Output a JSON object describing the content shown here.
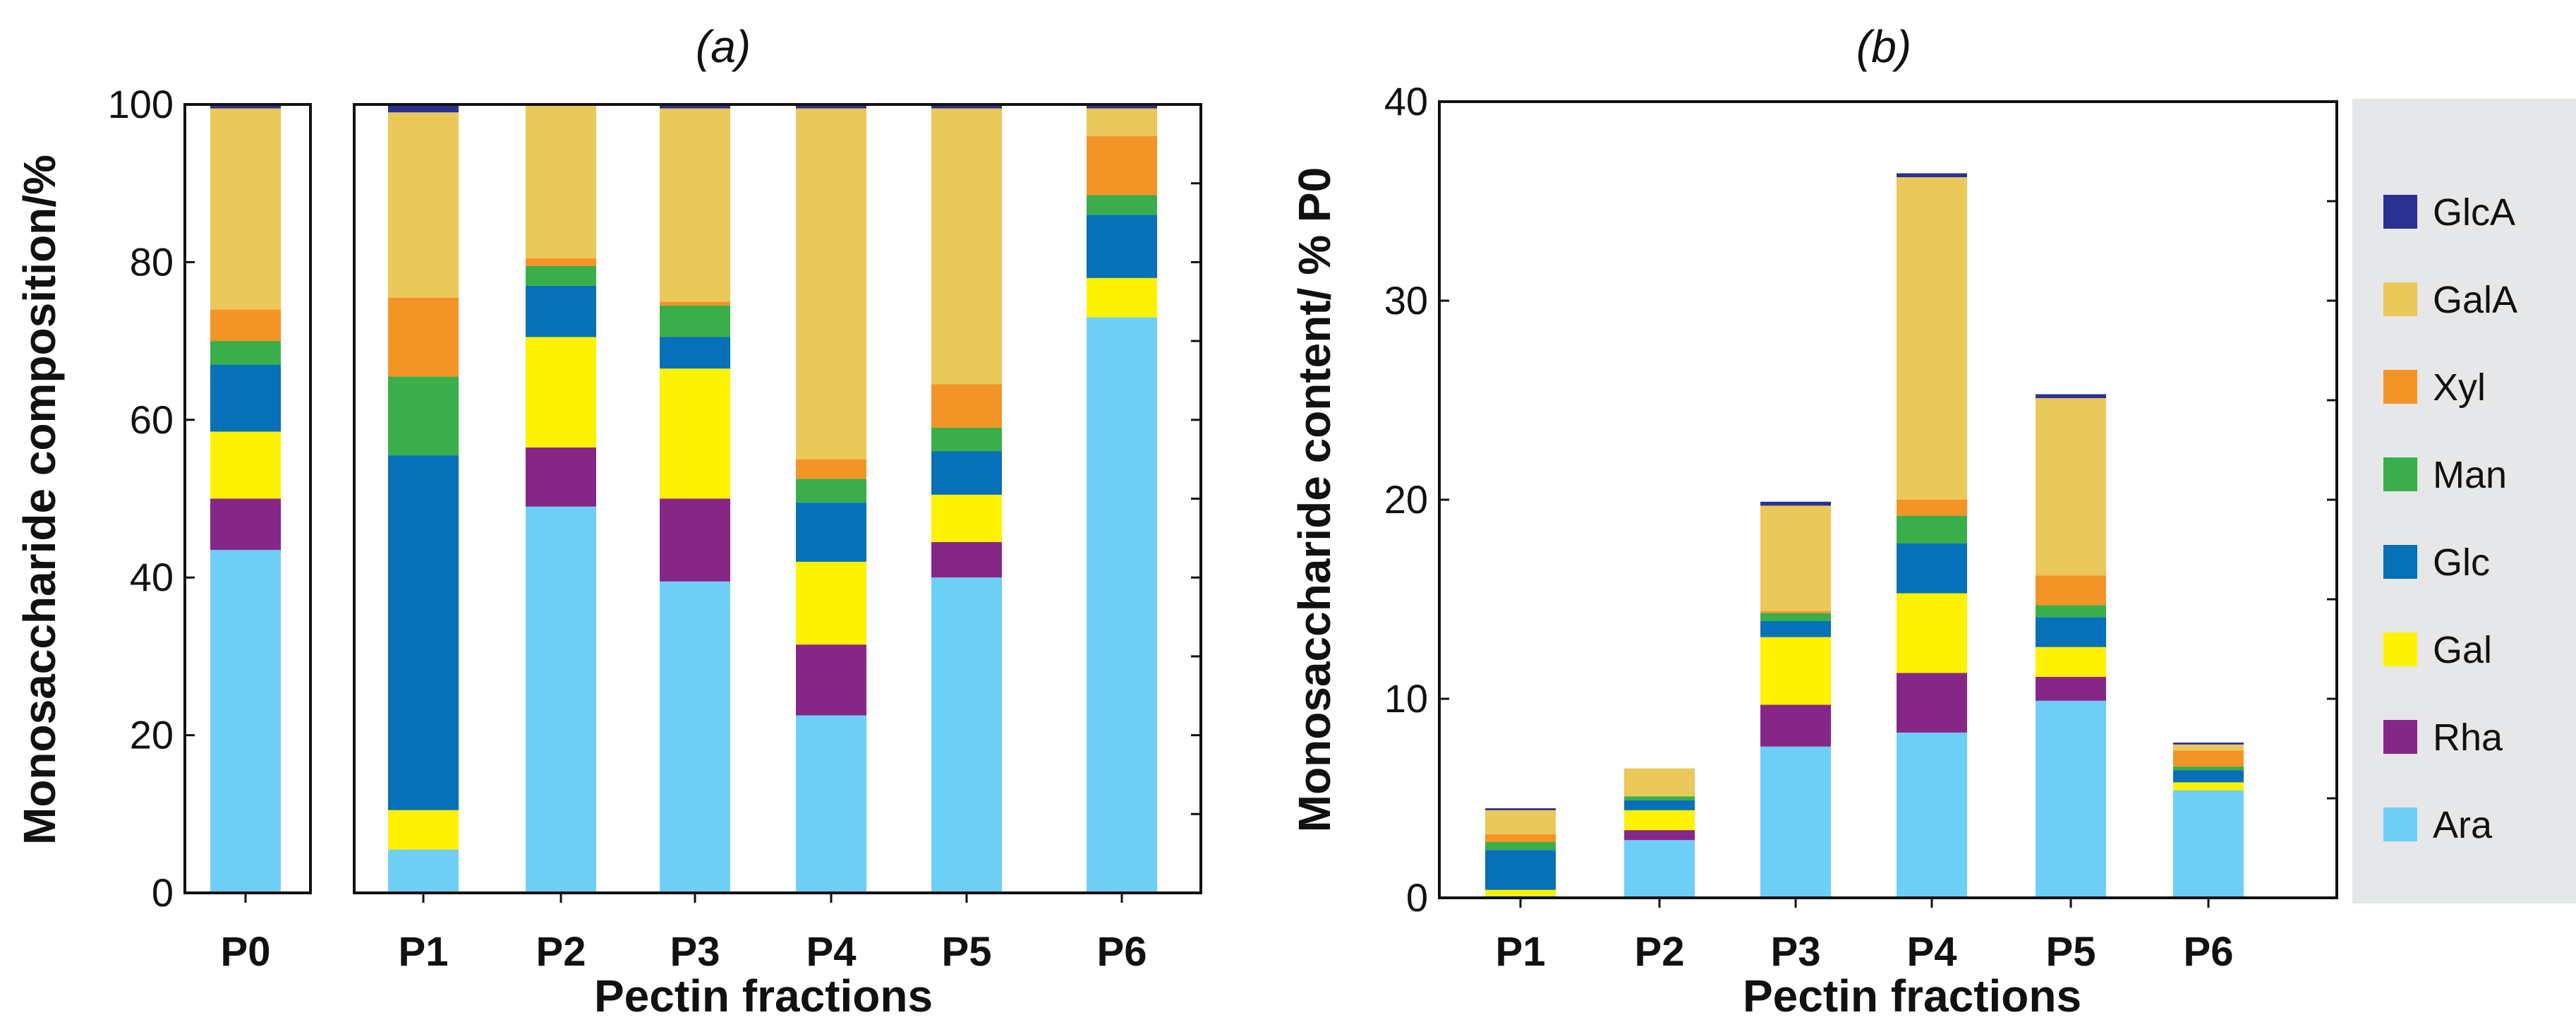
{
  "chart_data": [
    {
      "type": "bar",
      "stacked": true,
      "panel_label": "(a)",
      "ylabel": "Monosaccharide composition/%",
      "xlabel": "Pectin fractions",
      "ylim": [
        0,
        100
      ],
      "yticks": [
        "0",
        "20",
        "40",
        "60",
        "80",
        "100"
      ],
      "categories": [
        "P0",
        "P1",
        "P2",
        "P3",
        "P4",
        "P5",
        "P6"
      ],
      "series": [
        {
          "name": "Ara",
          "values": [
            43.5,
            5.5,
            49.0,
            39.5,
            22.5,
            40.0,
            73.0
          ]
        },
        {
          "name": "Rha",
          "values": [
            6.5,
            0.0,
            7.5,
            10.5,
            9.0,
            4.5,
            0.0
          ]
        },
        {
          "name": "Gal",
          "values": [
            8.5,
            5.0,
            14.0,
            16.5,
            10.5,
            6.0,
            5.0
          ]
        },
        {
          "name": "Glc",
          "values": [
            8.5,
            45.0,
            6.5,
            4.0,
            7.5,
            5.5,
            8.0
          ]
        },
        {
          "name": "Man",
          "values": [
            3.0,
            10.0,
            2.5,
            4.0,
            3.0,
            3.0,
            2.5
          ]
        },
        {
          "name": "Xyl",
          "values": [
            4.0,
            10.0,
            1.0,
            0.5,
            2.5,
            5.5,
            7.5
          ]
        },
        {
          "name": "GalA",
          "values": [
            25.5,
            23.5,
            19.5,
            24.5,
            44.5,
            35.0,
            3.5
          ]
        },
        {
          "name": "GlcA",
          "values": [
            0.5,
            1.0,
            0.0,
            0.5,
            0.5,
            0.5,
            0.5
          ]
        }
      ]
    },
    {
      "type": "bar",
      "stacked": true,
      "panel_label": "(b)",
      "ylabel": "Monosaccharide content/ % P0",
      "xlabel": "Pectin fractions",
      "ylim": [
        0,
        40
      ],
      "yticks": [
        "0",
        "10",
        "20",
        "30",
        "40"
      ],
      "categories": [
        "P1",
        "P2",
        "P3",
        "P4",
        "P5",
        "P6"
      ],
      "series": [
        {
          "name": "Ara",
          "values": [
            0.1,
            2.9,
            7.6,
            8.3,
            9.9,
            5.4
          ]
        },
        {
          "name": "Rha",
          "values": [
            0.0,
            0.5,
            2.1,
            3.0,
            1.2,
            0.0
          ]
        },
        {
          "name": "Gal",
          "values": [
            0.3,
            1.0,
            3.4,
            4.0,
            1.5,
            0.4
          ]
        },
        {
          "name": "Glc",
          "values": [
            2.0,
            0.5,
            0.8,
            2.5,
            1.5,
            0.6
          ]
        },
        {
          "name": "Man",
          "values": [
            0.4,
            0.2,
            0.4,
            1.4,
            0.6,
            0.2
          ]
        },
        {
          "name": "Xyl",
          "values": [
            0.4,
            0.0,
            0.1,
            0.8,
            1.5,
            0.8
          ]
        },
        {
          "name": "GalA",
          "values": [
            1.2,
            1.4,
            5.3,
            16.2,
            8.9,
            0.3
          ]
        },
        {
          "name": "GlcA",
          "values": [
            0.1,
            0.0,
            0.2,
            0.2,
            0.2,
            0.1
          ]
        }
      ]
    }
  ],
  "legend": {
    "items": [
      "GlcA",
      "GalA",
      "Xyl",
      "Man",
      "Glc",
      "Gal",
      "Rha",
      "Ara"
    ],
    "colors": {
      "GlcA": "#2b3190",
      "GalA": "#eac859",
      "Xyl": "#f39427",
      "Man": "#3aae4a",
      "Glc": "#0670b8",
      "Gal": "#fef200",
      "Rha": "#862787",
      "Ara": "#6dcff6"
    }
  }
}
